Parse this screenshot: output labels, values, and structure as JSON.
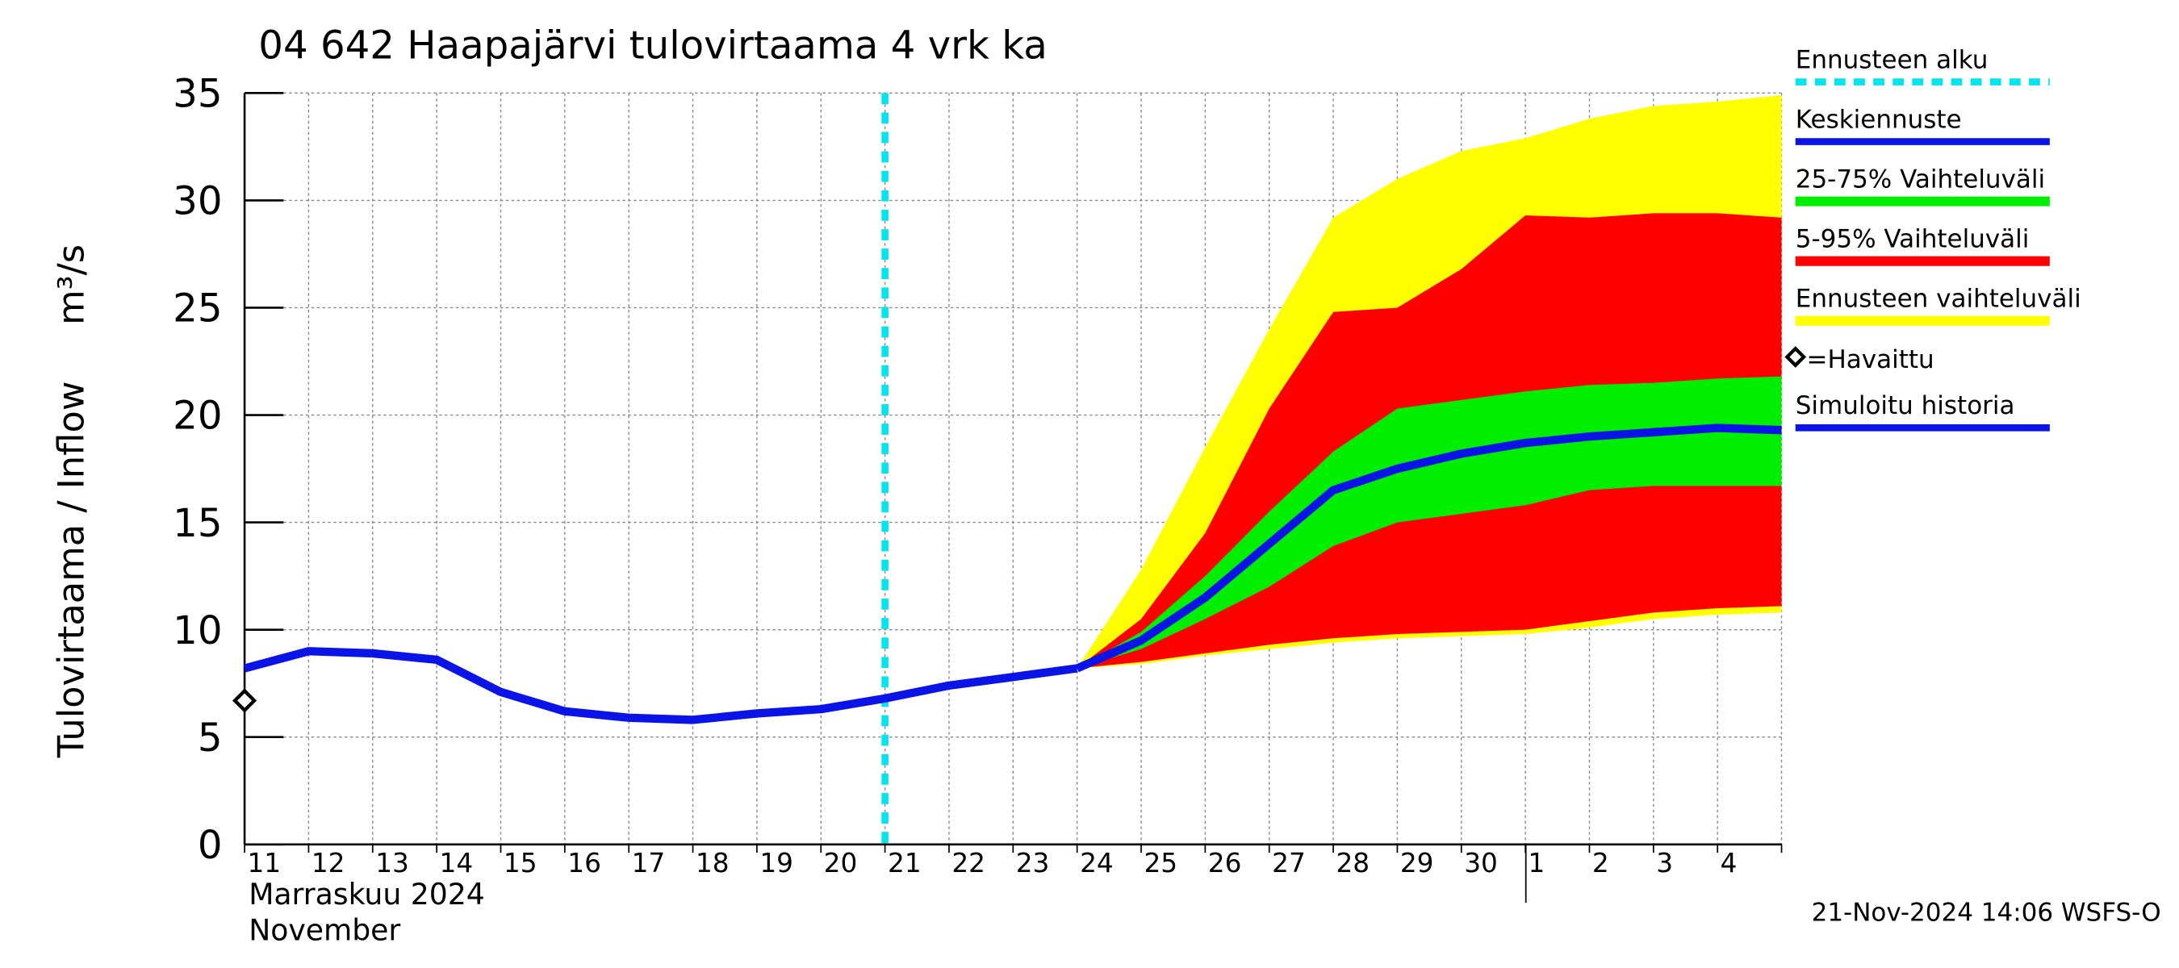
{
  "chart_data": {
    "type": "line",
    "title": "04 642 Haapajärvi tulovirtaama 4 vrk ka",
    "y_label": "Tulovirtaama / Inflow",
    "y_unit": "m³/s",
    "x_month_label": "Marraskuu 2024",
    "x_month_label_en": "November",
    "footer": "21-Nov-2024 14:06 WSFS-O",
    "categories": [
      "11",
      "12",
      "13",
      "14",
      "15",
      "16",
      "17",
      "18",
      "19",
      "20",
      "21",
      "22",
      "23",
      "24",
      "25",
      "26",
      "27",
      "28",
      "29",
      "30",
      "1",
      "2",
      "3",
      "4",
      null
    ],
    "ylim": [
      0,
      35
    ],
    "yticks": [
      0,
      5,
      10,
      15,
      20,
      25,
      30,
      35
    ],
    "grid": true,
    "series": [
      {
        "name": "Ennusteen alku",
        "color": "#00e5ee",
        "kind": "vline",
        "x": 10
      },
      {
        "name": "Keskiennuste",
        "color": "#0a14e6",
        "kind": "line",
        "values": [
          null,
          null,
          null,
          null,
          null,
          null,
          null,
          null,
          null,
          null,
          null,
          null,
          null,
          8.2,
          9.5,
          11.5,
          14.0,
          16.5,
          17.5,
          18.2,
          18.7,
          19.0,
          19.2,
          19.4,
          19.3
        ]
      },
      {
        "name": "25-75% Vaihteluväli",
        "color": "#00ee00",
        "kind": "band",
        "upper": [
          null,
          null,
          null,
          null,
          null,
          null,
          null,
          null,
          null,
          null,
          null,
          null,
          null,
          8.2,
          9.9,
          12.5,
          15.5,
          18.3,
          20.3,
          20.7,
          21.1,
          21.4,
          21.5,
          21.7,
          21.8
        ],
        "lower": [
          null,
          null,
          null,
          null,
          null,
          null,
          null,
          null,
          null,
          null,
          null,
          null,
          null,
          8.2,
          9.1,
          10.5,
          12.0,
          13.9,
          15.0,
          15.4,
          15.8,
          16.5,
          16.7,
          16.7,
          16.7
        ]
      },
      {
        "name": "5-95% Vaihteluväli",
        "color": "#ff0000",
        "kind": "band",
        "upper": [
          null,
          null,
          null,
          null,
          null,
          null,
          null,
          null,
          null,
          null,
          null,
          null,
          null,
          8.2,
          10.5,
          14.5,
          20.3,
          24.8,
          25.0,
          26.8,
          29.3,
          29.2,
          29.4,
          29.4,
          29.2
        ],
        "lower": [
          null,
          null,
          null,
          null,
          null,
          null,
          null,
          null,
          null,
          null,
          null,
          null,
          null,
          8.2,
          8.5,
          8.9,
          9.3,
          9.6,
          9.8,
          9.9,
          10.0,
          10.4,
          10.8,
          11.0,
          11.1
        ]
      },
      {
        "name": "Ennusteen vaihteluväli",
        "color": "#ffff00",
        "kind": "band",
        "upper": [
          null,
          null,
          null,
          null,
          null,
          null,
          null,
          null,
          null,
          null,
          null,
          null,
          null,
          8.2,
          12.8,
          18.5,
          24.0,
          29.2,
          31.0,
          32.3,
          32.9,
          33.8,
          34.4,
          34.6,
          34.9
        ],
        "lower": [
          null,
          null,
          null,
          null,
          null,
          null,
          null,
          null,
          null,
          null,
          null,
          null,
          null,
          8.2,
          8.4,
          8.8,
          9.1,
          9.4,
          9.6,
          9.7,
          9.8,
          10.1,
          10.5,
          10.7,
          10.8
        ]
      },
      {
        "name": "=Havaittu",
        "color": "#000000",
        "kind": "marker",
        "values": [
          6.7,
          null,
          null,
          null,
          null,
          null,
          null,
          null,
          null,
          null,
          null,
          null,
          null,
          null,
          null,
          null,
          null,
          null,
          null,
          null,
          null,
          null,
          null,
          null,
          null
        ]
      },
      {
        "name": "Simuloitu historia",
        "color": "#0a14e6",
        "kind": "line",
        "values": [
          8.2,
          9.0,
          8.9,
          8.6,
          7.1,
          6.2,
          5.9,
          5.8,
          6.1,
          6.3,
          6.8,
          7.4,
          7.8,
          8.2,
          null,
          null,
          null,
          null,
          null,
          null,
          null,
          null,
          null,
          null,
          null
        ]
      }
    ]
  }
}
